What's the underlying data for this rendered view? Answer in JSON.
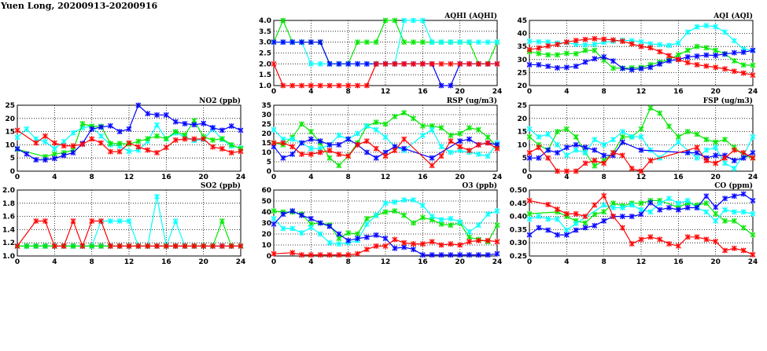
{
  "title": "Yuen Long, 20200913-20200916",
  "colors": {
    "red": "#ff0000",
    "green": "#00e800",
    "cyan": "#00ffff",
    "blue": "#0000ff"
  },
  "chart_data": [
    {
      "id": "aqhi",
      "type": "line",
      "title": "AQHI (AQHI)",
      "ylim": [
        1,
        4
      ],
      "yticks": [
        "1.0",
        "1.5",
        "2.0",
        "2.5",
        "3.0",
        "3.5",
        "4.0"
      ],
      "xticks": [
        "0",
        "4",
        "8",
        "12",
        "16",
        "20",
        "24"
      ],
      "xlim": [
        0,
        24
      ],
      "grid": true,
      "series": [
        {
          "name": "green",
          "values": [
            3,
            4,
            3,
            3,
            3,
            3,
            2,
            2,
            2,
            3,
            3,
            3,
            4,
            4,
            3,
            3,
            3,
            3,
            3,
            3,
            3,
            3,
            2,
            2,
            3
          ]
        },
        {
          "name": "cyan",
          "values": [
            3,
            3,
            3,
            3,
            2,
            2,
            2,
            2,
            2,
            2,
            2,
            2,
            2,
            2,
            4,
            4,
            4,
            3,
            3,
            3,
            3,
            3,
            3,
            3,
            3
          ]
        },
        {
          "name": "blue",
          "values": [
            3,
            3,
            3,
            3,
            3,
            3,
            2,
            2,
            2,
            2,
            2,
            2,
            2,
            2,
            2,
            2,
            2,
            2,
            1,
            1,
            2,
            2,
            2,
            2,
            2
          ]
        },
        {
          "name": "red",
          "values": [
            2,
            1,
            1,
            1,
            1,
            1,
            1,
            1,
            1,
            1,
            1,
            2,
            2,
            2,
            2,
            2,
            2,
            2,
            2,
            2,
            2,
            2,
            2,
            2,
            2
          ]
        }
      ]
    },
    {
      "id": "aqi",
      "type": "line",
      "title": "AQI (AQI)",
      "ylim": [
        20,
        45
      ],
      "yticks": [
        "20",
        "25",
        "30",
        "35",
        "40",
        "45"
      ],
      "xticks": [
        "0",
        "4",
        "8",
        "12",
        "16",
        "20",
        "24"
      ],
      "xlim": [
        0,
        24
      ],
      "grid": true,
      "series": [
        {
          "name": "cyan",
          "values": [
            37,
            36.8,
            36.7,
            36.3,
            36.5,
            35.8,
            35.6,
            35.8,
            36.6,
            37,
            37.4,
            37.2,
            36.8,
            36,
            35.7,
            35.4,
            36.3,
            40.5,
            42.5,
            43,
            42.6,
            40.5,
            37.2,
            34,
            33.5
          ]
        },
        {
          "name": "green",
          "values": [
            33,
            32.3,
            31.8,
            31.8,
            32.4,
            32.2,
            33.5,
            33.5,
            29.8,
            26.7,
            26.7,
            26.8,
            27,
            28,
            29,
            30,
            31.8,
            33.5,
            35,
            34.5,
            33.5,
            32.2,
            29.5,
            27.9,
            27.8
          ]
        },
        {
          "name": "blue",
          "values": [
            28,
            28,
            27.4,
            26.8,
            27,
            27.4,
            29,
            30.3,
            31,
            29.4,
            26.6,
            26.1,
            26.5,
            27,
            28.3,
            29.5,
            30,
            31,
            31.3,
            31.7,
            31.6,
            32.1,
            32.6,
            32.8,
            33.5
          ]
        },
        {
          "name": "red",
          "values": [
            33.8,
            34.4,
            35.2,
            35.8,
            36.7,
            37.3,
            37.7,
            38,
            37.8,
            37.5,
            37,
            36,
            35,
            34.5,
            33,
            31.5,
            30,
            28.8,
            28,
            27.5,
            27,
            26.4,
            25.5,
            24.8,
            24
          ]
        }
      ]
    },
    {
      "id": "no2",
      "type": "line",
      "title": "NO2 (ppb)",
      "ylim": [
        0,
        25
      ],
      "yticks": [
        "0",
        "5",
        "10",
        "15",
        "20",
        "25"
      ],
      "xticks": [
        "0",
        "4",
        "8",
        "12",
        "16",
        "20",
        "24"
      ],
      "xlim": [
        0,
        24
      ],
      "grid": true,
      "series": [
        {
          "name": "cyan",
          "values": [
            12.8,
            16,
            12.2,
            11.2,
            8.5,
            11.2,
            14.5,
            16.5,
            17,
            13.3,
            10,
            9.5,
            7.5,
            8,
            11.3,
            17.5,
            12.2,
            14.5,
            13,
            11.6,
            12,
            16,
            12,
            9.5,
            8.8
          ]
        },
        {
          "name": "green",
          "values": [
            8.3,
            null,
            null,
            5.5,
            6.5,
            7,
            8,
            18,
            17,
            17,
            10.5,
            10.5,
            10.3,
            11.3,
            12.3,
            13.3,
            12.3,
            15,
            13.7,
            19.2,
            13,
            11.8,
            12.3,
            10,
            8.5
          ]
        },
        {
          "name": "blue",
          "values": [
            8.5,
            6.5,
            4.3,
            4.3,
            4.8,
            6,
            7,
            10.5,
            16,
            16.7,
            17.2,
            15,
            16,
            25,
            21.8,
            21.3,
            21.3,
            18.7,
            18,
            17.6,
            18.1,
            16.5,
            15.5,
            17.1,
            15.5
          ]
        },
        {
          "name": "red",
          "values": [
            15.5,
            null,
            10.7,
            13.3,
            10.7,
            9.6,
            9.6,
            10.2,
            12.2,
            10.7,
            7.4,
            7.4,
            10.7,
            9.2,
            8,
            7,
            9,
            11.8,
            12.2,
            12.2,
            12.2,
            9.2,
            8.5,
            7,
            7.5
          ]
        }
      ]
    },
    {
      "id": "rsp",
      "type": "line",
      "title": "RSP (ug/m3)",
      "ylim": [
        0,
        35
      ],
      "yticks": [
        "0",
        "5",
        "10",
        "15",
        "20",
        "25",
        "30",
        "35"
      ],
      "xticks": [
        "0",
        "4",
        "8",
        "12",
        "16",
        "20",
        "24"
      ],
      "xlim": [
        0,
        24
      ],
      "grid": true,
      "series": [
        {
          "name": "green",
          "values": [
            15,
            14,
            18,
            25,
            21,
            15,
            7,
            3,
            8,
            15,
            24,
            26,
            25,
            29,
            31,
            28,
            24,
            24,
            23,
            19,
            20,
            23,
            22,
            18,
            13
          ]
        },
        {
          "name": "cyan",
          "values": [
            22,
            17,
            17,
            15,
            12,
            12,
            14,
            19,
            17,
            20,
            24,
            22,
            18,
            13,
            11,
            null,
            19,
            22,
            13,
            10,
            11,
            10,
            9,
            8,
            15
          ]
        },
        {
          "name": "blue",
          "values": [
            13,
            7,
            9,
            15,
            17,
            16,
            14,
            14,
            17,
            14,
            10,
            7,
            10,
            13,
            12,
            null,
            null,
            7,
            null,
            null,
            16,
            17,
            14,
            15,
            14
          ]
        },
        {
          "name": "red",
          "values": [
            15,
            15,
            13,
            9,
            9,
            10,
            11,
            9,
            8,
            14,
            16,
            12,
            8,
            11,
            17,
            null,
            null,
            3,
            8,
            16,
            13,
            11,
            14,
            15,
            12
          ]
        }
      ]
    },
    {
      "id": "fsp",
      "type": "line",
      "title": "FSP (ug/m3)",
      "ylim": [
        0,
        25
      ],
      "yticks": [
        "0",
        "5",
        "10",
        "15",
        "20",
        "25"
      ],
      "xticks": [
        "0",
        "4",
        "8",
        "12",
        "16",
        "20",
        "24"
      ],
      "xlim": [
        0,
        24
      ],
      "grid": true,
      "series": [
        {
          "name": "green",
          "values": [
            13,
            10,
            8,
            15,
            16,
            13,
            7,
            2,
            4,
            7,
            13,
            13,
            16,
            24,
            22,
            17,
            13,
            15,
            14,
            12,
            11,
            12,
            9,
            6,
            5
          ]
        },
        {
          "name": "cyan",
          "values": [
            16,
            13,
            14,
            10,
            6,
            8,
            7,
            12,
            10,
            12,
            15,
            13,
            13,
            8,
            5,
            null,
            11,
            null,
            5,
            8,
            9,
            3,
            1,
            6,
            13
          ]
        },
        {
          "name": "blue",
          "values": [
            5,
            5,
            8,
            7,
            9,
            10,
            9,
            8,
            6,
            6,
            11,
            null,
            8,
            null,
            null,
            null,
            null,
            7,
            7,
            5,
            6,
            6,
            4,
            5,
            7
          ]
        },
        {
          "name": "red",
          "values": [
            7,
            9,
            5,
            0,
            0,
            0,
            3,
            4,
            3,
            7,
            6,
            1,
            0,
            4,
            null,
            null,
            null,
            null,
            9,
            4,
            3,
            5,
            8,
            7,
            5
          ]
        }
      ]
    },
    {
      "id": "so2",
      "type": "line",
      "title": "SO2 (ppb)",
      "ylim": [
        1,
        2
      ],
      "yticks": [
        "1.0",
        "1.2",
        "1.4",
        "1.6",
        "1.8",
        "2.0"
      ],
      "xticks": [
        "0",
        "4",
        "8",
        "12",
        "16",
        "20",
        "24"
      ],
      "xlim": [
        0,
        24
      ],
      "grid": true,
      "series": [
        {
          "name": "blue",
          "values": [
            1.15,
            1.15,
            1.15,
            1.15,
            1.15,
            1.15,
            1.15,
            1.15,
            1.15,
            1.15,
            1.15,
            1.15,
            1.15,
            1.15,
            1.15,
            1.15,
            1.15,
            1.15,
            1.15,
            1.15,
            1.15,
            1.15,
            1.15,
            1.15,
            1.15
          ]
        },
        {
          "name": "cyan",
          "values": [
            1.15,
            1.15,
            1.15,
            1.15,
            1.15,
            1.15,
            1.15,
            1.15,
            1.15,
            1.53,
            1.53,
            1.53,
            1.53,
            1.15,
            1.15,
            1.9,
            1.15,
            1.53,
            1.15,
            1.15,
            1.15,
            1.15,
            1.15,
            1.15,
            1.15
          ]
        },
        {
          "name": "green",
          "values": [
            1.15,
            1.15,
            1.15,
            1.15,
            1.15,
            1.15,
            1.15,
            1.15,
            1.15,
            1.15,
            1.15,
            1.15,
            1.15,
            1.15,
            1.15,
            1.15,
            1.15,
            1.15,
            1.15,
            1.15,
            1.15,
            1.15,
            1.53,
            1.15,
            1.15
          ]
        },
        {
          "name": "red",
          "values": [
            1.15,
            null,
            1.53,
            1.53,
            1.15,
            1.15,
            1.53,
            1.15,
            1.53,
            1.53,
            1.15,
            1.15,
            1.15,
            1.15,
            1.15,
            1.15,
            1.15,
            1.15,
            1.15,
            1.15,
            1.15,
            1.15,
            1.15,
            1.15,
            1.15
          ]
        }
      ]
    },
    {
      "id": "o3",
      "type": "line",
      "title": "O3 (ppb)",
      "ylim": [
        0,
        60
      ],
      "yticks": [
        "0",
        "10",
        "20",
        "30",
        "40",
        "50",
        "60"
      ],
      "xticks": [
        "0",
        "4",
        "8",
        "12",
        "16",
        "20",
        "24"
      ],
      "xlim": [
        0,
        24
      ],
      "grid": true,
      "series": [
        {
          "name": "green",
          "values": [
            41,
            40,
            40,
            38,
            29,
            30,
            28,
            16,
            21,
            20,
            34,
            37,
            40,
            41,
            37,
            30,
            35,
            33,
            29,
            28,
            30,
            17,
            15,
            13,
            28
          ]
        },
        {
          "name": "cyan",
          "values": [
            34,
            25,
            25,
            21,
            26,
            20,
            12,
            11,
            12,
            14,
            29,
            37,
            48,
            49,
            51,
            51,
            46,
            36,
            33,
            34,
            31,
            22,
            28,
            38,
            41
          ]
        },
        {
          "name": "blue",
          "values": [
            29,
            38,
            41,
            37,
            34,
            30,
            27,
            20,
            14,
            16,
            17,
            19,
            16,
            7,
            8,
            6,
            1,
            1,
            1,
            1,
            1,
            1,
            1,
            1,
            2
          ]
        },
        {
          "name": "red",
          "values": [
            2,
            null,
            3,
            1,
            1,
            1,
            1,
            1,
            1,
            2,
            6,
            9,
            9,
            15,
            12,
            11,
            11,
            13,
            10,
            11,
            10,
            13,
            14,
            14,
            13
          ]
        }
      ]
    },
    {
      "id": "co",
      "type": "line",
      "title": "CO (ppm)",
      "ylim": [
        0.25,
        0.5
      ],
      "yticks": [
        "0.25",
        "0.30",
        "0.35",
        "0.40",
        "0.45",
        "0.50"
      ],
      "xticks": [
        "0",
        "4",
        "8",
        "12",
        "16",
        "20",
        "24"
      ],
      "xlim": [
        0,
        24
      ],
      "grid": true,
      "series": [
        {
          "name": "green",
          "values": [
            0.41,
            null,
            null,
            0.417,
            0.4,
            0.383,
            0.375,
            0.408,
            0.417,
            0.45,
            0.44,
            0.45,
            0.45,
            0.46,
            0.46,
            null,
            0.435,
            0.45,
            0.443,
            0.45,
            0.41,
            0.383,
            0.383,
            0.357,
            0.33
          ]
        },
        {
          "name": "cyan",
          "values": [
            0.39,
            0.4,
            0.39,
            0.39,
            0.348,
            0.373,
            null,
            null,
            0.443,
            0.433,
            0.433,
            0.443,
            0.425,
            0.417,
            0.45,
            0.468,
            0.45,
            0.46,
            0.433,
            0.417,
            0.383,
            0.425,
            0.417,
            0.417,
            0.41
          ]
        },
        {
          "name": "blue",
          "values": [
            0.33,
            0.357,
            0.348,
            0.33,
            0.33,
            0.348,
            0.357,
            0.365,
            0.383,
            0.4,
            0.4,
            0.4,
            0.408,
            0.452,
            0.425,
            0.433,
            0.425,
            0.433,
            0.433,
            0.477,
            0.435,
            0.468,
            0.477,
            0.485,
            0.46
          ]
        },
        {
          "name": "red",
          "values": [
            0.46,
            null,
            0.445,
            0.427,
            0.41,
            0.41,
            0.4,
            0.443,
            0.478,
            0.4,
            0.357,
            0.296,
            0.313,
            0.322,
            0.313,
            0.296,
            0.288,
            0.322,
            0.322,
            0.313,
            0.305,
            0.271,
            0.279,
            0.271,
            0.255
          ]
        }
      ]
    }
  ]
}
